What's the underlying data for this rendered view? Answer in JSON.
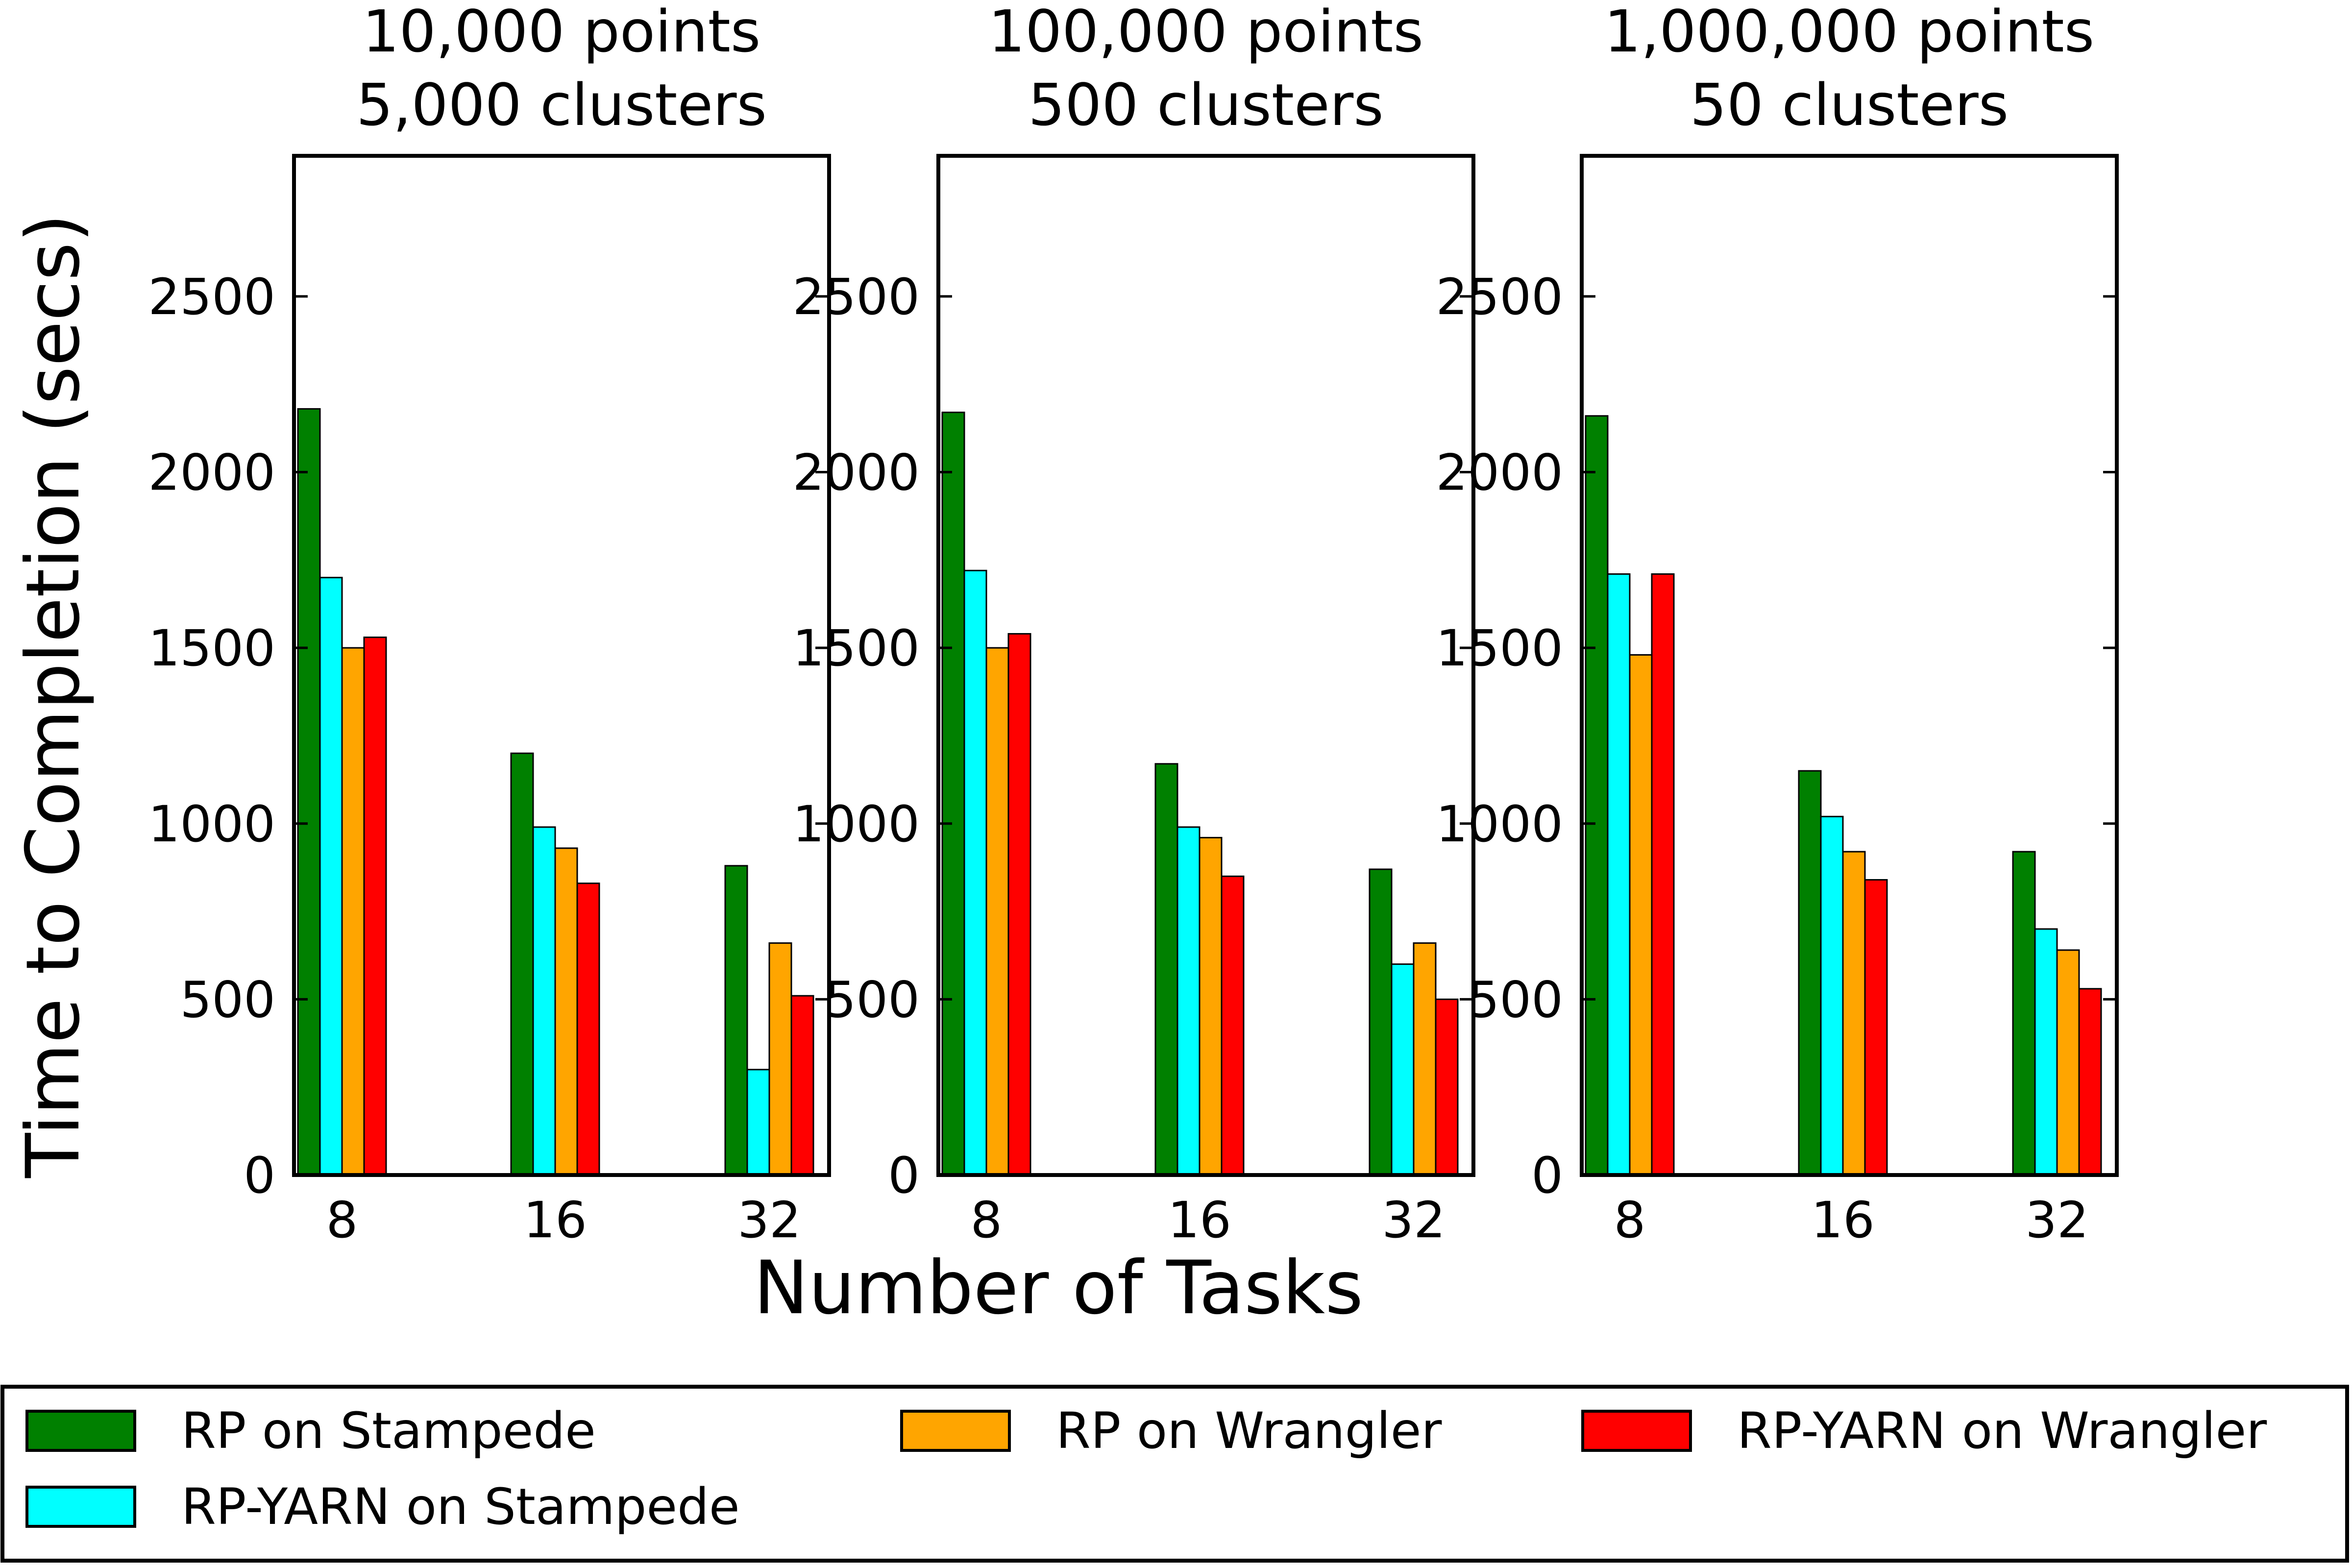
{
  "chart_data": {
    "type": "bar",
    "ylabel": "Time to Completion (secs)",
    "xlabel": "Number of Tasks",
    "ylim": [
      0,
      2900
    ],
    "yticks": [
      0,
      500,
      1000,
      1500,
      2000,
      2500
    ],
    "categories": [
      "8",
      "16",
      "32"
    ],
    "colors": {
      "RP on Stampede": "#008000",
      "RP-YARN on Stampede": "#00ffff",
      "RP on Wrangler": "#ffa500",
      "RP-YARN on Wrangler": "#ff0000"
    },
    "legend": {
      "placement": "bottom",
      "entries": [
        "RP on Stampede",
        "RP on Wrangler",
        "RP-YARN on Wrangler",
        "RP-YARN on Stampede"
      ]
    },
    "panels": [
      {
        "title_line1": "10,000 points",
        "title_line2": "5,000 clusters",
        "series": [
          {
            "name": "RP on Stampede",
            "values": [
              2180,
              1200,
              880
            ]
          },
          {
            "name": "RP-YARN on Stampede",
            "values": [
              1700,
              990,
              300
            ]
          },
          {
            "name": "RP on Wrangler",
            "values": [
              1500,
              930,
              660
            ]
          },
          {
            "name": "RP-YARN on Wrangler",
            "values": [
              1530,
              830,
              510
            ]
          }
        ]
      },
      {
        "title_line1": "100,000 points",
        "title_line2": "500 clusters",
        "series": [
          {
            "name": "RP on Stampede",
            "values": [
              2170,
              1170,
              870
            ]
          },
          {
            "name": "RP-YARN on Stampede",
            "values": [
              1720,
              990,
              600
            ]
          },
          {
            "name": "RP on Wrangler",
            "values": [
              1500,
              960,
              660
            ]
          },
          {
            "name": "RP-YARN on Wrangler",
            "values": [
              1540,
              850,
              500
            ]
          }
        ]
      },
      {
        "title_line1": "1,000,000 points",
        "title_line2": "50 clusters",
        "series": [
          {
            "name": "RP on Stampede",
            "values": [
              2160,
              1150,
              920
            ]
          },
          {
            "name": "RP-YARN on Stampede",
            "values": [
              1710,
              1020,
              700
            ]
          },
          {
            "name": "RP on Wrangler",
            "values": [
              1480,
              920,
              640
            ]
          },
          {
            "name": "RP-YARN on Wrangler",
            "values": [
              1710,
              840,
              530
            ]
          }
        ]
      }
    ]
  }
}
